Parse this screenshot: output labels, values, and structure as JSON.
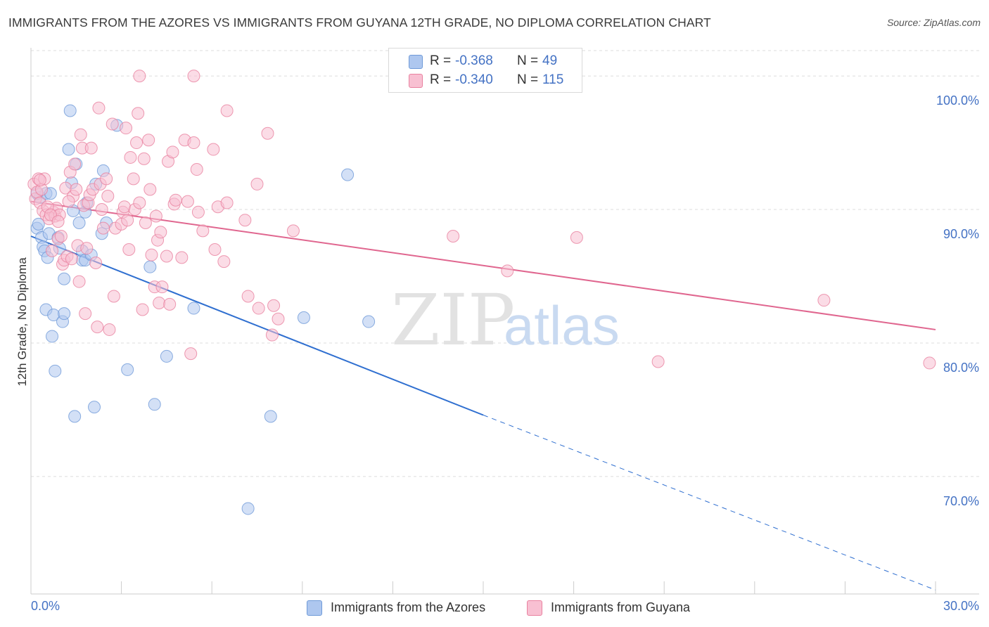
{
  "title": "IMMIGRANTS FROM THE AZORES VS IMMIGRANTS FROM GUYANA 12TH GRADE, NO DIPLOMA CORRELATION CHART",
  "source": "Source: ZipAtlas.com",
  "watermark": {
    "zip": "ZIP",
    "atlas": "atlas"
  },
  "stats": [
    {
      "r_label": "R =",
      "r_value": "-0.368",
      "n_label": "N =",
      "n_value": "49",
      "color": "#aec7ef",
      "border": "#6f9ad8"
    },
    {
      "r_label": "R =",
      "r_value": "-0.340",
      "n_label": "N =",
      "n_value": "115",
      "color": "#f8c0d2",
      "border": "#e9819f"
    }
  ],
  "legend": [
    {
      "label": "Immigrants from the Azores",
      "color": "#aec7ef",
      "border": "#6f9ad8"
    },
    {
      "label": "Immigrants from Guyana",
      "color": "#f8c0d2",
      "border": "#e9819f"
    }
  ],
  "chart_data": {
    "type": "scatter",
    "title": "IMMIGRANTS FROM THE AZORES VS IMMIGRANTS FROM GUYANA 12TH GRADE, NO DIPLOMA CORRELATION CHART",
    "xlabel": "",
    "ylabel": "12th Grade, No Diploma",
    "xlim": [
      0,
      30
    ],
    "ylim": [
      61.2,
      101.9
    ],
    "x_tick_labels": [
      "0.0%",
      "30.0%"
    ],
    "y_ticks": [
      70,
      80,
      90,
      100
    ],
    "y_tick_labels": [
      "70.0%",
      "80.0%",
      "90.0%",
      "100.0%"
    ],
    "grid": true,
    "series": [
      {
        "name": "Immigrants from the Azores",
        "color": "#6f9ad8",
        "fill": "#aec7ef",
        "trend": {
          "x0": 0,
          "y0": 88.0,
          "x1": 15.0,
          "y1": 74.6,
          "dash_to_x": 30,
          "dash_to_y": 61.5,
          "color": "#2f6fd0"
        },
        "points": [
          [
            0.2,
            88.6
          ],
          [
            0.3,
            90.9
          ],
          [
            0.35,
            87.9
          ],
          [
            0.4,
            87.2
          ],
          [
            0.45,
            86.9
          ],
          [
            0.5,
            91.2
          ],
          [
            0.55,
            86.4
          ],
          [
            0.5,
            82.5
          ],
          [
            0.6,
            88.2
          ],
          [
            0.65,
            91.2
          ],
          [
            0.7,
            80.5
          ],
          [
            0.75,
            82.1
          ],
          [
            0.8,
            77.9
          ],
          [
            0.9,
            87.9
          ],
          [
            0.95,
            87.1
          ],
          [
            1.05,
            81.6
          ],
          [
            1.1,
            84.8
          ],
          [
            1.1,
            82.2
          ],
          [
            1.3,
            97.4
          ],
          [
            1.25,
            94.5
          ],
          [
            1.35,
            92.0
          ],
          [
            1.4,
            89.9
          ],
          [
            1.45,
            74.5
          ],
          [
            1.5,
            93.4
          ],
          [
            1.6,
            89.0
          ],
          [
            1.7,
            86.2
          ],
          [
            1.7,
            86.9
          ],
          [
            1.8,
            86.2
          ],
          [
            1.8,
            89.8
          ],
          [
            1.85,
            90.5
          ],
          [
            2.0,
            86.6
          ],
          [
            2.1,
            75.2
          ],
          [
            2.15,
            91.9
          ],
          [
            2.4,
            92.9
          ],
          [
            2.35,
            88.2
          ],
          [
            2.5,
            89.0
          ],
          [
            2.85,
            96.3
          ],
          [
            3.2,
            78.0
          ],
          [
            3.95,
            85.7
          ],
          [
            4.1,
            75.4
          ],
          [
            4.5,
            79.0
          ],
          [
            5.4,
            82.6
          ],
          [
            7.2,
            67.6
          ],
          [
            7.95,
            74.5
          ],
          [
            9.05,
            81.9
          ],
          [
            10.5,
            92.6
          ],
          [
            11.2,
            81.6
          ],
          [
            0.2,
            91.2
          ],
          [
            0.25,
            88.9
          ]
        ]
      },
      {
        "name": "Immigrants from Guyana",
        "color": "#e9819f",
        "fill": "#f8c0d2",
        "trend": {
          "x0": 0,
          "y0": 90.6,
          "x1": 30,
          "y1": 81.0,
          "color": "#e0668f"
        },
        "points": [
          [
            0.1,
            91.9
          ],
          [
            0.15,
            90.8
          ],
          [
            0.2,
            91.3
          ],
          [
            0.25,
            92.3
          ],
          [
            0.3,
            90.5
          ],
          [
            0.35,
            91.5
          ],
          [
            0.4,
            89.9
          ],
          [
            0.45,
            92.3
          ],
          [
            0.5,
            89.6
          ],
          [
            0.6,
            89.3
          ],
          [
            0.7,
            86.9
          ],
          [
            0.75,
            89.8
          ],
          [
            0.8,
            89.5
          ],
          [
            0.85,
            90.1
          ],
          [
            0.9,
            87.8
          ],
          [
            0.95,
            89.6
          ],
          [
            1.0,
            88.0
          ],
          [
            1.05,
            85.9
          ],
          [
            1.1,
            86.2
          ],
          [
            1.15,
            91.6
          ],
          [
            1.2,
            86.5
          ],
          [
            1.3,
            92.8
          ],
          [
            1.35,
            86.3
          ],
          [
            1.4,
            91.0
          ],
          [
            1.45,
            93.4
          ],
          [
            1.5,
            91.5
          ],
          [
            1.55,
            87.3
          ],
          [
            1.6,
            84.6
          ],
          [
            1.65,
            95.6
          ],
          [
            1.7,
            94.6
          ],
          [
            1.75,
            90.3
          ],
          [
            1.8,
            82.2
          ],
          [
            1.85,
            87.1
          ],
          [
            1.9,
            90.5
          ],
          [
            1.95,
            91.1
          ],
          [
            2.0,
            94.6
          ],
          [
            2.05,
            91.5
          ],
          [
            2.15,
            86.0
          ],
          [
            2.2,
            81.2
          ],
          [
            2.25,
            97.6
          ],
          [
            2.3,
            91.9
          ],
          [
            2.4,
            88.6
          ],
          [
            2.5,
            92.3
          ],
          [
            2.55,
            91.0
          ],
          [
            2.6,
            81.0
          ],
          [
            2.7,
            96.4
          ],
          [
            2.75,
            83.5
          ],
          [
            2.8,
            88.6
          ],
          [
            3.0,
            88.9
          ],
          [
            3.05,
            89.8
          ],
          [
            3.1,
            90.2
          ],
          [
            3.15,
            96.1
          ],
          [
            3.2,
            89.2
          ],
          [
            3.25,
            87.0
          ],
          [
            3.3,
            93.9
          ],
          [
            3.4,
            92.3
          ],
          [
            3.45,
            90.0
          ],
          [
            3.5,
            95.0
          ],
          [
            3.55,
            97.2
          ],
          [
            3.6,
            90.5
          ],
          [
            3.7,
            82.5
          ],
          [
            3.75,
            93.8
          ],
          [
            3.8,
            89.0
          ],
          [
            3.9,
            95.2
          ],
          [
            3.95,
            91.5
          ],
          [
            4.0,
            86.6
          ],
          [
            4.1,
            84.2
          ],
          [
            4.15,
            89.5
          ],
          [
            4.2,
            87.7
          ],
          [
            4.25,
            83.0
          ],
          [
            4.3,
            88.3
          ],
          [
            4.35,
            84.2
          ],
          [
            4.5,
            86.5
          ],
          [
            4.55,
            93.6
          ],
          [
            4.6,
            82.9
          ],
          [
            4.7,
            94.3
          ],
          [
            4.75,
            90.4
          ],
          [
            4.8,
            90.7
          ],
          [
            5.0,
            86.4
          ],
          [
            5.1,
            95.2
          ],
          [
            5.2,
            90.6
          ],
          [
            5.3,
            79.2
          ],
          [
            5.4,
            95.0
          ],
          [
            5.5,
            93.0
          ],
          [
            5.55,
            89.8
          ],
          [
            5.7,
            88.4
          ],
          [
            6.05,
            94.5
          ],
          [
            6.1,
            87.0
          ],
          [
            6.2,
            90.2
          ],
          [
            6.4,
            86.1
          ],
          [
            6.5,
            90.5
          ],
          [
            6.5,
            97.4
          ],
          [
            7.1,
            89.2
          ],
          [
            7.2,
            83.5
          ],
          [
            7.5,
            91.9
          ],
          [
            7.55,
            82.6
          ],
          [
            7.85,
            95.7
          ],
          [
            8.0,
            80.6
          ],
          [
            8.05,
            82.8
          ],
          [
            8.2,
            81.8
          ],
          [
            8.7,
            88.4
          ],
          [
            3.6,
            100.0
          ],
          [
            5.4,
            100.0
          ],
          [
            14.0,
            88.0
          ],
          [
            15.8,
            85.4
          ],
          [
            18.1,
            87.9
          ],
          [
            20.8,
            78.6
          ],
          [
            26.3,
            83.2
          ],
          [
            29.8,
            78.5
          ],
          [
            0.3,
            92.2
          ],
          [
            0.55,
            90.2
          ],
          [
            0.65,
            89.6
          ],
          [
            0.9,
            89.1
          ],
          [
            1.25,
            90.6
          ],
          [
            2.35,
            90.0
          ]
        ]
      }
    ]
  }
}
